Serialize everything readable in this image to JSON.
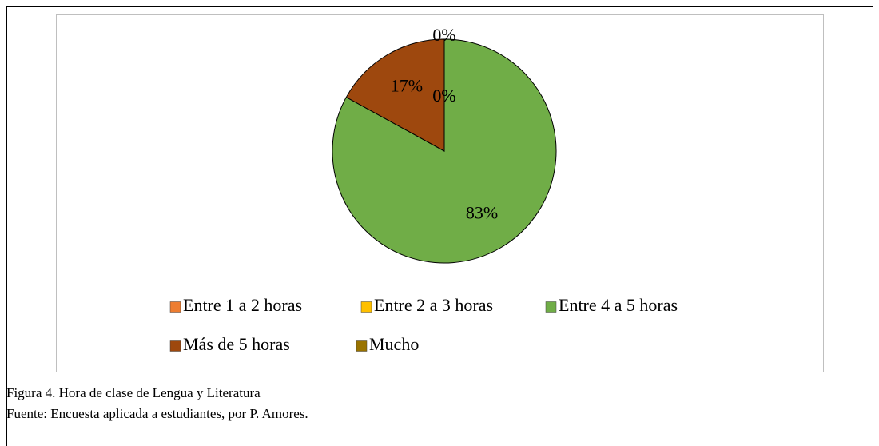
{
  "chart_data": {
    "type": "pie",
    "categories": [
      "Entre 1 a 2 horas",
      "Entre 2 a 3 horas",
      "Entre 4 a 5 horas",
      "Más de 5 horas",
      "Mucho"
    ],
    "values": [
      0,
      0,
      83,
      17,
      0
    ],
    "value_labels": [
      "0%",
      "0%",
      "83%",
      "17%",
      "0%"
    ],
    "colors": [
      "#ed7d31",
      "#ffc000",
      "#70ad47",
      "#9e480e",
      "#997300"
    ],
    "legend": "bottom"
  },
  "caption": [
    "Figura 4. Hora de clase de Lengua y Literatura",
    "Fuente: Encuesta aplicada a estudiantes, por P. Amores."
  ]
}
